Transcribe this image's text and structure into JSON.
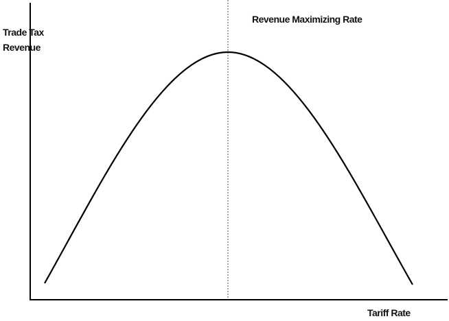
{
  "y_axis_label": [
    "Trade Tax",
    "Revenue"
  ],
  "annotation": "Revenue Maximizing Rate",
  "x_axis_label": "Tariff Rate"
}
